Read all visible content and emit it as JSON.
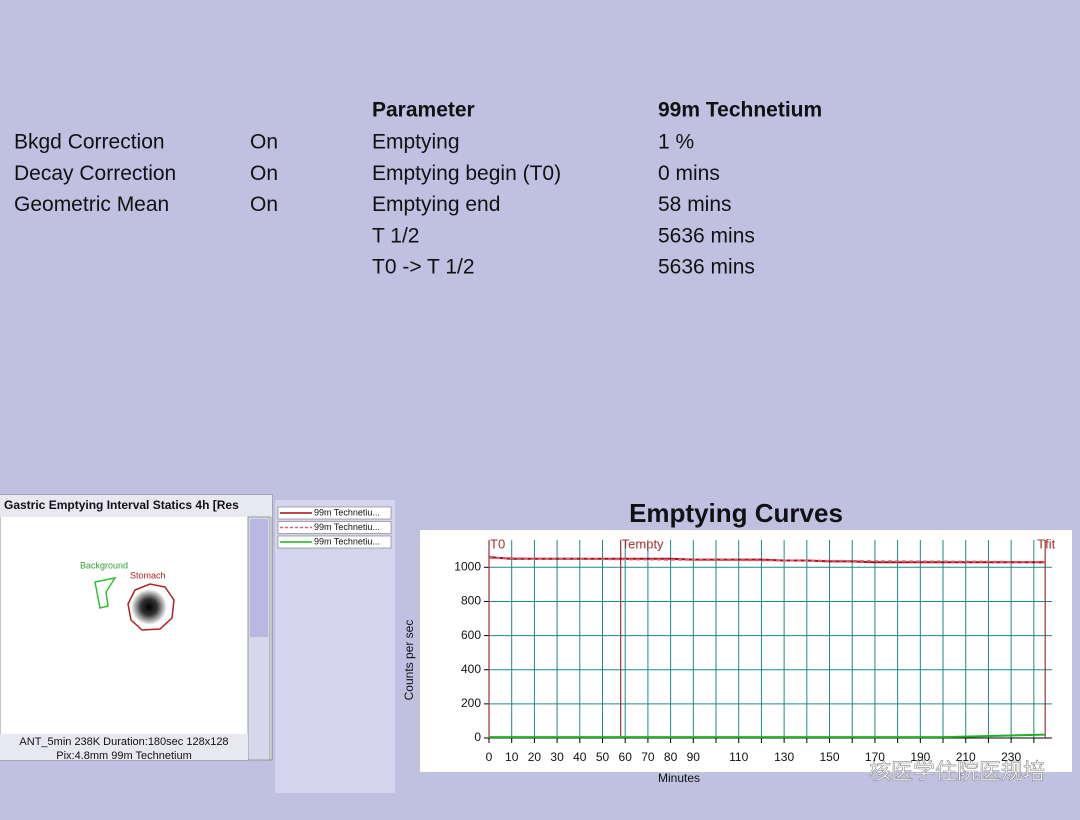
{
  "corrections": [
    [
      "Bkgd Correction",
      "On"
    ],
    [
      "Decay Correction",
      "On"
    ],
    [
      "Geometric Mean",
      "On"
    ]
  ],
  "parameters": {
    "header": [
      "Parameter",
      "99m Technetium"
    ],
    "rows": [
      [
        "Emptying",
        "1 %"
      ],
      [
        "Emptying begin (T0)",
        "0 mins"
      ],
      [
        "Emptying end",
        "58 mins"
      ],
      [
        "T 1/2",
        "5636 mins"
      ],
      [
        "T0 -> T 1/2",
        "5636 mins"
      ]
    ]
  },
  "image_panel": {
    "title": "Gastric Emptying Interval Statics 4h [Res",
    "roi_labels": [
      "Background",
      "Stomach"
    ],
    "caption": [
      "ANT_5min 238K Duration:180sec 128x128",
      "Pix:4.8mm 99m Technetium"
    ]
  },
  "chart_data": {
    "type": "line",
    "title": "Emptying Curves",
    "x_label": "Minutes",
    "y_label": "Counts per sec",
    "x": [
      0,
      10,
      20,
      30,
      40,
      50,
      60,
      70,
      80,
      90,
      100,
      110,
      120,
      130,
      140,
      150,
      160,
      170,
      180,
      190,
      200,
      210,
      220,
      230,
      240,
      245
    ],
    "series": [
      {
        "name": "99m Technetiu...",
        "color": "#a01010",
        "dashed": false,
        "values": [
          1060,
          1050,
          1050,
          1050,
          1050,
          1050,
          1050,
          1050,
          1050,
          1045,
          1045,
          1045,
          1045,
          1040,
          1040,
          1035,
          1035,
          1030,
          1030,
          1030,
          1030,
          1030,
          1030,
          1030,
          1030,
          1030
        ]
      },
      {
        "name": "99m Technetiu...",
        "color": "#e05878",
        "dashed": true,
        "values": [
          1055,
          1053,
          1051,
          1050,
          1049,
          1048,
          1047,
          1046,
          1045,
          1044,
          1043,
          1042,
          1041,
          1040,
          1039,
          1038,
          1037,
          1036,
          1035,
          1034,
          1034,
          1033,
          1033,
          1032,
          1032,
          1032
        ]
      },
      {
        "name": "99m Technetiu...",
        "color": "#20b020",
        "dashed": false,
        "values": [
          5,
          5,
          5,
          5,
          5,
          5,
          5,
          5,
          5,
          5,
          5,
          5,
          5,
          5,
          5,
          5,
          5,
          5,
          5,
          5,
          5,
          8,
          12,
          15,
          18,
          20
        ]
      }
    ],
    "markers": [
      {
        "label": "T0",
        "x": 0
      },
      {
        "label": "Tempty",
        "x": 58
      },
      {
        "label": "Tfit",
        "x": 245
      }
    ],
    "xlim": [
      0,
      248
    ],
    "ylim": [
      0,
      1160
    ],
    "xticks": [
      0,
      10,
      20,
      30,
      40,
      50,
      60,
      70,
      80,
      90,
      {
        "value": 100,
        "label": null
      },
      110,
      {
        "value": 120,
        "label": null
      },
      130,
      {
        "value": 140,
        "label": null
      },
      150,
      {
        "value": 160,
        "label": null
      },
      170,
      {
        "value": 180,
        "label": null
      },
      190,
      {
        "value": 200,
        "label": null
      },
      210,
      {
        "value": 220,
        "label": null
      },
      230,
      {
        "value": 240,
        "label": null
      }
    ],
    "yticks": [
      0,
      200,
      400,
      600,
      800,
      1000
    ],
    "grid": true,
    "grid_color": "#1a8a8a"
  },
  "watermark": "核医学住院医规培"
}
